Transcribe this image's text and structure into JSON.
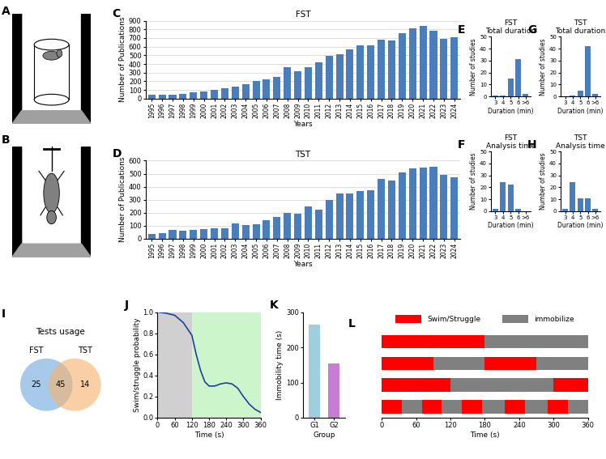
{
  "chart_data": [
    {
      "panel": "A",
      "type": "illustration"
    },
    {
      "panel": "B",
      "type": "illustration"
    },
    {
      "panel": "C",
      "type": "bar",
      "title": "FST",
      "x_label": "Years",
      "y_label": "Number of Publications",
      "categories": [
        "1995",
        "1996",
        "1997",
        "1998",
        "1999",
        "2000",
        "2001",
        "2002",
        "2003",
        "2004",
        "2005",
        "2006",
        "2007",
        "2008",
        "2009",
        "2010",
        "2011",
        "2012",
        "2013",
        "2014",
        "2015",
        "2016",
        "2017",
        "2018",
        "2019",
        "2020",
        "2021",
        "2022",
        "2023",
        "2024"
      ],
      "values": [
        45,
        45,
        50,
        55,
        70,
        85,
        100,
        120,
        135,
        165,
        200,
        225,
        255,
        360,
        315,
        365,
        415,
        490,
        515,
        570,
        615,
        615,
        680,
        670,
        755,
        810,
        835,
        785,
        690,
        710
      ],
      "color": "#4a7ebb",
      "ylim": [
        0,
        900
      ],
      "yticks": [
        0,
        100,
        200,
        300,
        400,
        500,
        600,
        700,
        800,
        900
      ],
      "grid": true
    },
    {
      "panel": "D",
      "type": "bar",
      "title": "TST",
      "x_label": "Years",
      "y_label": "Number of Publications",
      "categories": [
        "1995",
        "1996",
        "1997",
        "1998",
        "1999",
        "2000",
        "2001",
        "2002",
        "2003",
        "2004",
        "2005",
        "2006",
        "2007",
        "2008",
        "2009",
        "2010",
        "2011",
        "2012",
        "2013",
        "2014",
        "2015",
        "2016",
        "2017",
        "2018",
        "2019",
        "2020",
        "2021",
        "2022",
        "2023",
        "2024"
      ],
      "values": [
        35,
        45,
        65,
        60,
        70,
        75,
        80,
        80,
        115,
        105,
        110,
        145,
        165,
        200,
        195,
        245,
        225,
        295,
        345,
        345,
        365,
        370,
        460,
        445,
        510,
        540,
        545,
        555,
        490,
        475
      ],
      "color": "#4a7ebb",
      "ylim": [
        0,
        600
      ],
      "yticks": [
        0,
        100,
        200,
        300,
        400,
        500,
        600
      ],
      "grid": true
    },
    {
      "panel": "E",
      "type": "bar",
      "title": "FST",
      "subtitle": "Total duration",
      "x_label": "Duration (min)",
      "y_label": "Number of studies",
      "categories": [
        "3",
        "4",
        "5",
        "6",
        ">6"
      ],
      "values": [
        1,
        1,
        15,
        31,
        2
      ],
      "color": "#4a7ebb",
      "ylim": [
        0,
        50
      ],
      "yticks": [
        0,
        10,
        20,
        30,
        40,
        50
      ]
    },
    {
      "panel": "F",
      "type": "bar",
      "title": "FST",
      "subtitle": "Analysis time",
      "x_label": "Duration (min)",
      "y_label": "Number of studies",
      "categories": [
        "3",
        "4",
        "5",
        "6",
        ">6"
      ],
      "values": [
        2,
        24,
        22,
        2,
        0
      ],
      "color": "#4a7ebb",
      "ylim": [
        0,
        50
      ],
      "yticks": [
        0,
        10,
        20,
        30,
        40,
        50
      ]
    },
    {
      "panel": "G",
      "type": "bar",
      "title": "TST",
      "subtitle": "Total duration",
      "x_label": "Duration (min)",
      "y_label": "Number of studies",
      "categories": [
        "3",
        "4",
        "5",
        "6",
        ">6"
      ],
      "values": [
        0,
        1,
        5,
        42,
        2
      ],
      "color": "#4a7ebb",
      "ylim": [
        0,
        50
      ],
      "yticks": [
        0,
        10,
        20,
        30,
        40,
        50
      ]
    },
    {
      "panel": "H",
      "type": "bar",
      "title": "TST",
      "subtitle": "Analysis time",
      "x_label": "Duration (min)",
      "y_label": "Number of studies",
      "categories": [
        "3",
        "4",
        "5",
        "6",
        ">6"
      ],
      "values": [
        2,
        24,
        11,
        11,
        2
      ],
      "color": "#4a7ebb",
      "ylim": [
        0,
        50
      ],
      "yticks": [
        0,
        10,
        20,
        30,
        40,
        50
      ]
    },
    {
      "panel": "I",
      "type": "venn",
      "title": "Tests usage",
      "sets": [
        {
          "name": "FST",
          "color": "#6fa8dc",
          "only": 25
        },
        {
          "name": "TST",
          "color": "#f6b26b",
          "only": 14
        }
      ],
      "overlap": 45
    },
    {
      "panel": "J",
      "type": "line",
      "x_label": "Time (s)",
      "y_label": "Swim/struggle probability",
      "x": [
        0,
        30,
        60,
        90,
        120,
        135,
        150,
        165,
        180,
        200,
        220,
        240,
        260,
        280,
        300,
        320,
        340,
        360
      ],
      "values": [
        1.0,
        0.99,
        0.97,
        0.9,
        0.78,
        0.6,
        0.45,
        0.34,
        0.3,
        0.3,
        0.32,
        0.33,
        0.32,
        0.28,
        0.2,
        0.13,
        0.08,
        0.05
      ],
      "color": "#1f3f99",
      "xlim": [
        0,
        360
      ],
      "xticks": [
        0,
        60,
        120,
        180,
        240,
        300,
        360
      ],
      "ylim": [
        0.0,
        1.0
      ],
      "yticks": [
        0.0,
        0.2,
        0.4,
        0.6,
        0.8,
        1.0
      ],
      "shaded_regions": [
        {
          "start": 0,
          "end": 120,
          "color": "#d0d0d0"
        },
        {
          "start": 120,
          "end": 360,
          "color": "#ccf5cc"
        }
      ]
    },
    {
      "panel": "K",
      "type": "bar",
      "x_label": "Group",
      "y_label": "Immobility time (s)",
      "categories": [
        "G1",
        "G2"
      ],
      "values": [
        265,
        155
      ],
      "colors": [
        "#9dcfe0",
        "#c77dd3"
      ],
      "ylim": [
        0,
        300
      ],
      "yticks": [
        0,
        100,
        200,
        300
      ]
    },
    {
      "panel": "L",
      "type": "timeline",
      "x_label": "Time (s)",
      "xlim": [
        0,
        360
      ],
      "xticks": [
        0,
        60,
        120,
        180,
        240,
        300,
        360
      ],
      "tick_labels": "x",
      "legend": "upper center",
      "series": [
        {
          "name": "Swim/Struggle",
          "color": "#ff0000"
        },
        {
          "name": "immobilize",
          "color": "#808080"
        }
      ],
      "rows": [
        [
          {
            "state": "Swim/Struggle",
            "start": 0,
            "end": 180
          },
          {
            "state": "immobilize",
            "start": 180,
            "end": 360
          }
        ],
        [
          {
            "state": "Swim/Struggle",
            "start": 0,
            "end": 90
          },
          {
            "state": "immobilize",
            "start": 90,
            "end": 180
          },
          {
            "state": "Swim/Struggle",
            "start": 180,
            "end": 270
          },
          {
            "state": "immobilize",
            "start": 270,
            "end": 360
          }
        ],
        [
          {
            "state": "Swim/Struggle",
            "start": 0,
            "end": 120
          },
          {
            "state": "immobilize",
            "start": 120,
            "end": 300
          },
          {
            "state": "Swim/Struggle",
            "start": 300,
            "end": 360
          }
        ],
        [
          {
            "state": "Swim/Struggle",
            "start": 0,
            "end": 35
          },
          {
            "state": "immobilize",
            "start": 35,
            "end": 70
          },
          {
            "state": "Swim/Struggle",
            "start": 70,
            "end": 105
          },
          {
            "state": "immobilize",
            "start": 105,
            "end": 140
          },
          {
            "state": "Swim/Struggle",
            "start": 140,
            "end": 175
          },
          {
            "state": "immobilize",
            "start": 175,
            "end": 215
          },
          {
            "state": "Swim/Struggle",
            "start": 215,
            "end": 250
          },
          {
            "state": "immobilize",
            "start": 250,
            "end": 290
          },
          {
            "state": "Swim/Struggle",
            "start": 290,
            "end": 325
          },
          {
            "state": "immobilize",
            "start": 325,
            "end": 360
          }
        ]
      ]
    }
  ]
}
